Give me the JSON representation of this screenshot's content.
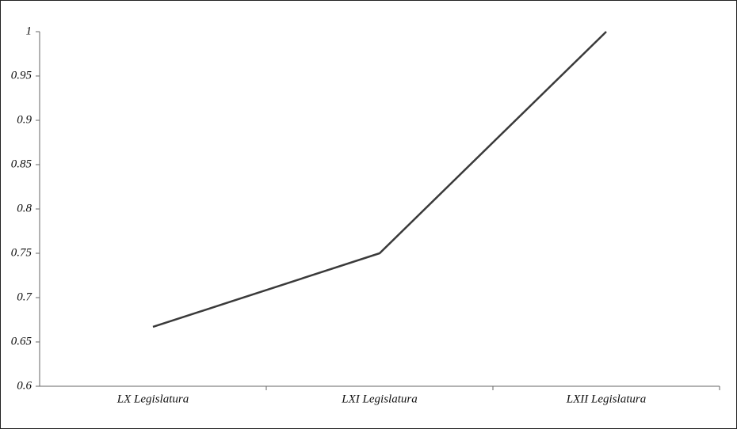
{
  "chart_data": {
    "type": "line",
    "categories": [
      "LX Legislatura",
      "LXI Legislatura",
      "LXII Legislatura"
    ],
    "series": [
      {
        "color": "#3a3a3a",
        "values": [
          0.667,
          0.75,
          1
        ]
      }
    ],
    "ylim": [
      0.6,
      1
    ],
    "yticks": [
      0.6,
      0.65,
      0.7,
      0.75,
      0.8,
      0.85,
      0.9,
      0.95,
      1
    ],
    "grid": false
  }
}
